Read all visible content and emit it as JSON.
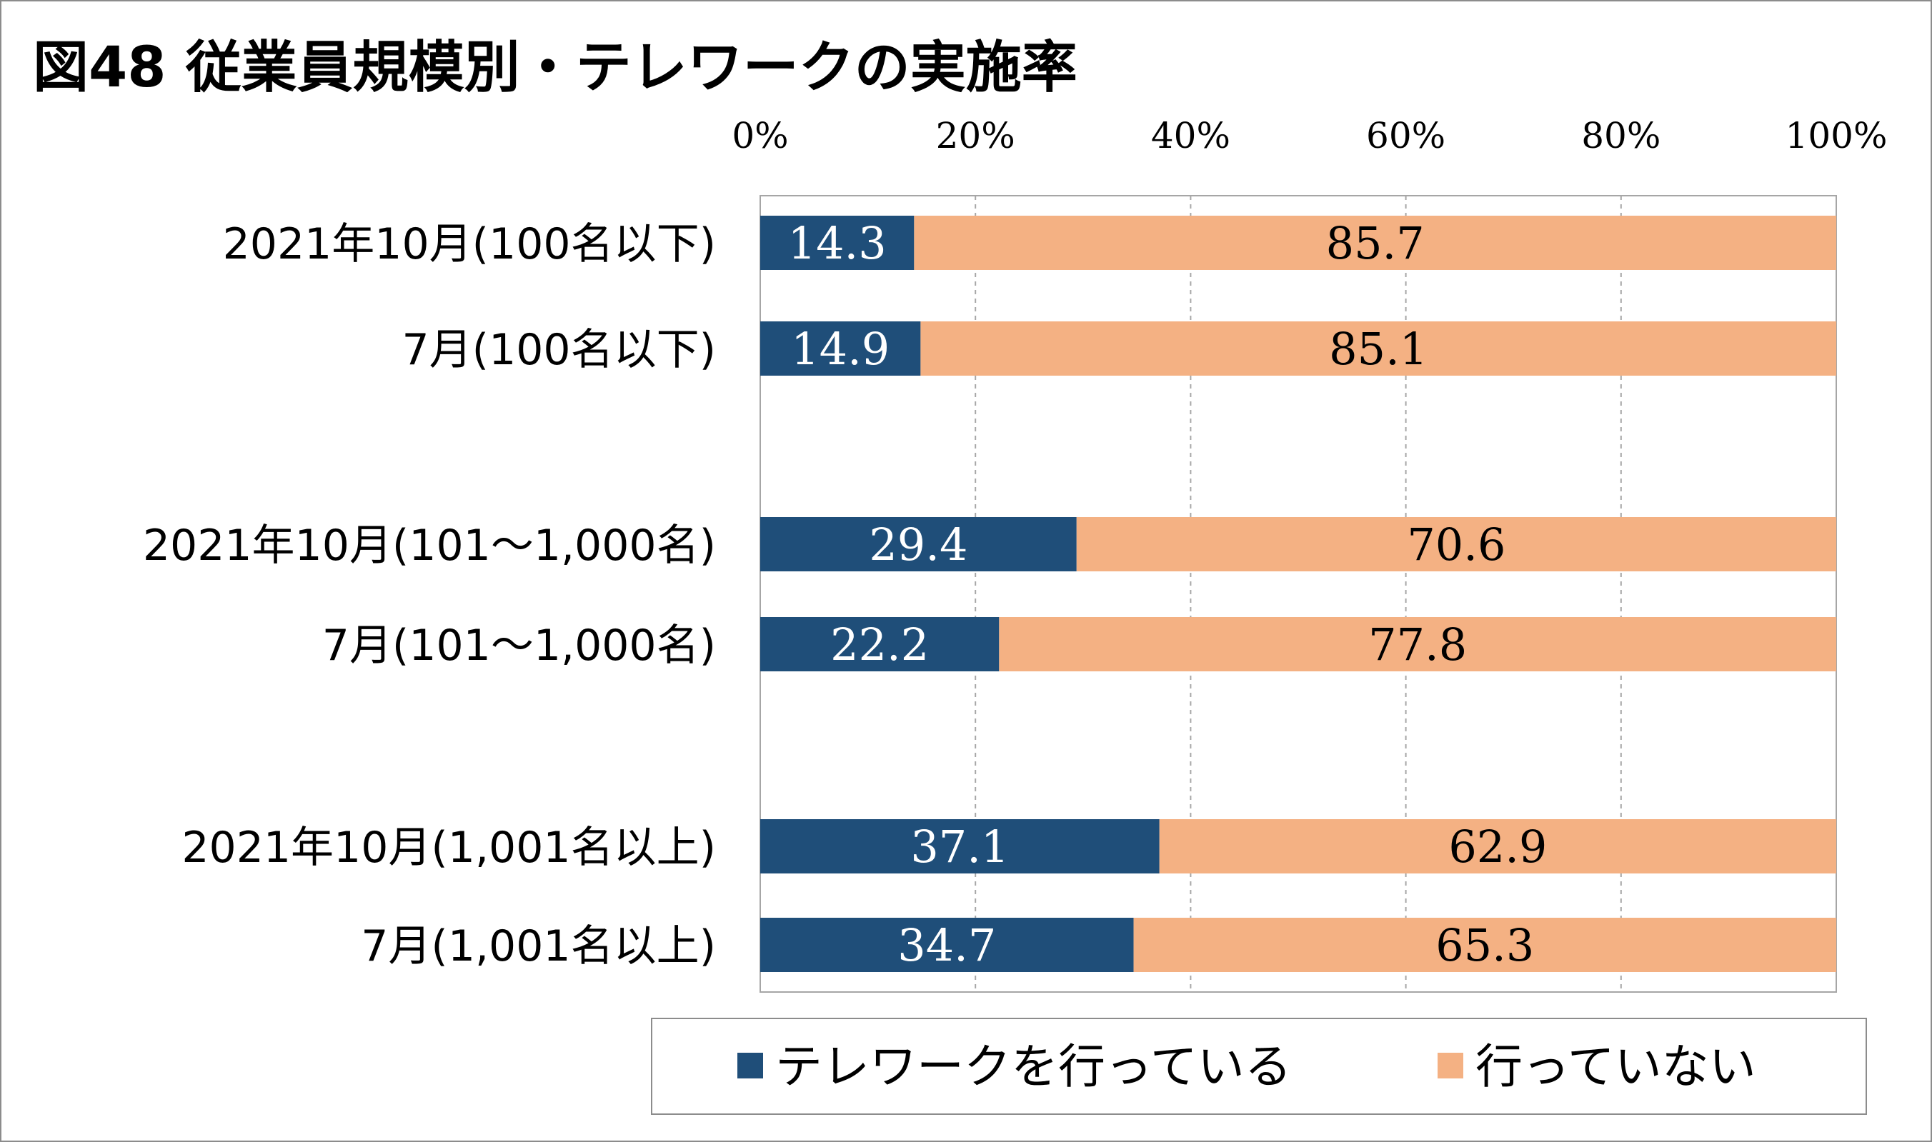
{
  "chart_data": {
    "type": "bar",
    "orientation": "horizontal",
    "stacked": true,
    "title": "図48 従業員規模別・テレワークの実施率",
    "categories": [
      "2021年10月(100名以下)",
      "7月(100名以下)",
      "2021年10月(101～1,000名)",
      "7月(101～1,000名)",
      "2021年10月(1,001名以上)",
      "7月(1,001名以上)"
    ],
    "series": [
      {
        "name": "テレワークを行っている",
        "color": "#1f4e79",
        "label_color": "#ffffff",
        "values": [
          14.3,
          14.9,
          29.4,
          22.2,
          37.1,
          34.7
        ]
      },
      {
        "name": "行っていない",
        "color": "#f4b183",
        "label_color": "#000000",
        "values": [
          85.7,
          85.1,
          70.6,
          77.8,
          62.9,
          65.3
        ]
      }
    ],
    "xlim": [
      0,
      100
    ],
    "x_ticks": [
      "0%",
      "20%",
      "40%",
      "60%",
      "80%",
      "100%"
    ],
    "x_axis_position": "top",
    "grid": "vertical-dashed",
    "legend_placement": "bottom"
  }
}
